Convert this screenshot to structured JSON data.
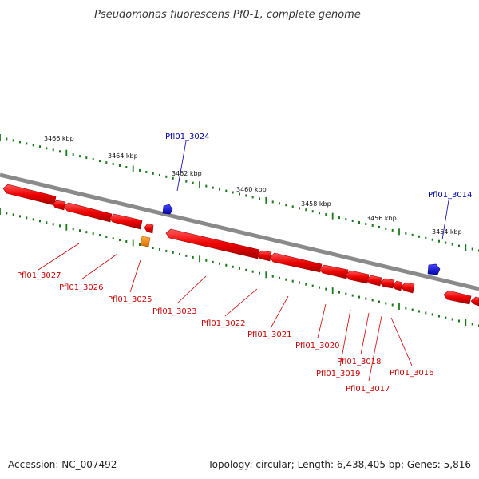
{
  "title": "Pseudomonas fluorescens Pf0-1, complete genome",
  "footer": {
    "accession": "Accession: NC_007492",
    "summary": "Topology: circular; Length: 6,438,405 bp; Genes: 5,816"
  },
  "colors": {
    "backbone": "#8a8a8a",
    "tick": "#1a7a1a",
    "forward_gene": "#1a1acc",
    "reverse_gene": "#ee0000",
    "rna_gene": "#ff8800",
    "reverse_label": "#cc0000",
    "forward_label": "#0000aa"
  },
  "kbp_labels": [
    "3466 kbp",
    "3464 kbp",
    "3462 kbp",
    "3460 kbp",
    "3458 kbp",
    "3456 kbp",
    "3454 kbp"
  ],
  "forward_genes": [
    "Pfl01_3024",
    "Pfl01_3014"
  ],
  "reverse_genes": [
    "Pfl01_3027",
    "Pfl01_3026",
    "Pfl01_3025",
    "Pfl01_3023",
    "Pfl01_3022",
    "Pfl01_3021",
    "Pfl01_3020",
    "Pfl01_3019",
    "Pfl01_3018",
    "Pfl01_3017",
    "Pfl01_3016"
  ]
}
